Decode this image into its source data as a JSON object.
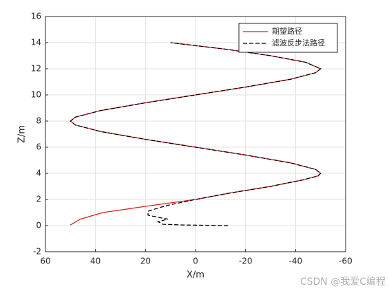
{
  "chart_data": {
    "type": "line",
    "xlabel": "X/m",
    "ylabel": "Z/m",
    "xlim": [
      60,
      -60
    ],
    "xticks": [
      60,
      40,
      20,
      0,
      -20,
      -40,
      -60
    ],
    "ylim": [
      -2,
      16
    ],
    "yticks": [
      -2,
      0,
      2,
      4,
      6,
      8,
      10,
      12,
      14,
      16
    ],
    "grid": true,
    "legend": "upper right",
    "watermark": "CSDN @我爱C编程",
    "series": [
      {
        "name": "期望路径",
        "color": "#e41a1c",
        "dash": "solid",
        "x": [
          50,
          46,
          37,
          19,
          0,
          -14,
          -30,
          -43,
          -49,
          -50,
          -48,
          -38,
          -20,
          0,
          20,
          38,
          48,
          50,
          48,
          38,
          20,
          0,
          -20,
          -38,
          -48,
          -50,
          -44,
          -30,
          -12,
          10
        ],
        "values": [
          0.05,
          0.5,
          1,
          1.5,
          2,
          2.5,
          3,
          3.5,
          3.8,
          4,
          4.3,
          4.8,
          5.4,
          6,
          6.6,
          7.2,
          7.7,
          8,
          8.3,
          8.8,
          9.4,
          10,
          10.6,
          11.2,
          11.7,
          12,
          12.5,
          13,
          13.5,
          14
        ]
      },
      {
        "name": "滤波反步法路径",
        "color": "#000000",
        "dash": "dashed",
        "x": [
          -13,
          -5,
          5,
          13,
          15,
          11,
          14,
          19,
          19,
          14,
          10,
          0,
          -14,
          -30,
          -43,
          -49,
          -50,
          -48,
          -38,
          -20,
          0,
          20,
          38,
          48,
          50,
          48,
          38,
          20,
          0,
          -20,
          -38,
          -48,
          -50,
          -44,
          -30,
          -12,
          10
        ],
        "values": [
          0,
          0.02,
          0.05,
          0.1,
          0.3,
          0.5,
          0.6,
          0.8,
          1.1,
          1.4,
          1.6,
          2,
          2.5,
          3,
          3.5,
          3.8,
          4,
          4.3,
          4.8,
          5.4,
          6,
          6.6,
          7.2,
          7.7,
          8,
          8.3,
          8.8,
          9.4,
          10,
          10.6,
          11.2,
          11.7,
          12,
          12.5,
          13,
          13.5,
          14
        ]
      }
    ]
  }
}
